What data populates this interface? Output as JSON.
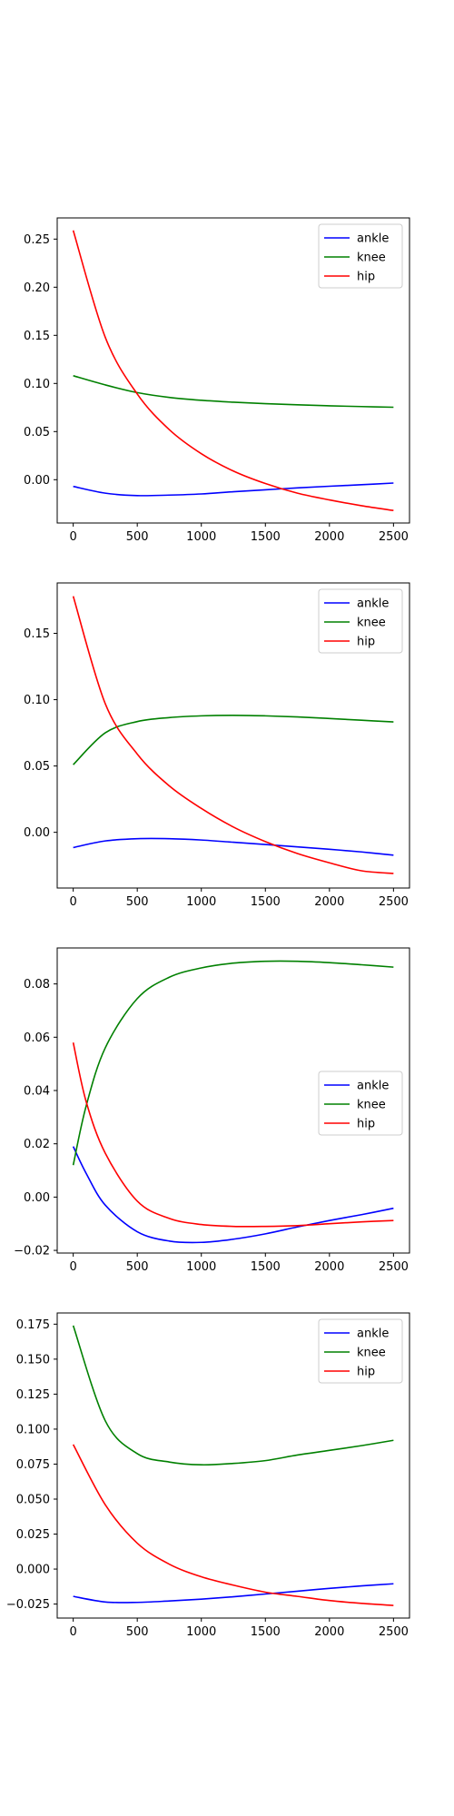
{
  "chart_data": [
    {
      "type": "line",
      "title": "",
      "xlabel": "",
      "ylabel": "",
      "xlim": [
        -125,
        2625
      ],
      "ylim": [
        -0.045,
        0.272
      ],
      "xticks": [
        0,
        500,
        1000,
        1500,
        2000,
        2500
      ],
      "yticks": [
        0.0,
        0.05,
        0.1,
        0.15,
        0.2,
        0.25
      ],
      "ytick_labels": [
        "0.00",
        "0.05",
        "0.10",
        "0.15",
        "0.20",
        "0.25"
      ],
      "legend": "top-right",
      "grid": false,
      "x": [
        0,
        250,
        500,
        750,
        1000,
        1250,
        1500,
        1750,
        2000,
        2250,
        2500
      ],
      "series": [
        {
          "name": "ankle",
          "color": "#0000ff",
          "values": [
            -0.007,
            -0.014,
            -0.0165,
            -0.016,
            -0.0148,
            -0.0125,
            -0.0105,
            -0.0085,
            -0.0068,
            -0.0052,
            -0.0035
          ]
        },
        {
          "name": "knee",
          "color": "#008000",
          "values": [
            0.108,
            0.0985,
            0.0905,
            0.0855,
            0.0825,
            0.0805,
            0.079,
            0.0778,
            0.0768,
            0.076,
            0.0753
          ]
        },
        {
          "name": "hip",
          "color": "#ff0000",
          "values": [
            0.259,
            0.148,
            0.089,
            0.052,
            0.027,
            0.009,
            -0.004,
            -0.014,
            -0.021,
            -0.027,
            -0.032
          ]
        }
      ]
    },
    {
      "type": "line",
      "title": "",
      "xlabel": "",
      "ylabel": "",
      "xlim": [
        -125,
        2625
      ],
      "ylim": [
        -0.042,
        0.188
      ],
      "xticks": [
        0,
        500,
        1000,
        1500,
        2000,
        2500
      ],
      "yticks": [
        0.0,
        0.05,
        0.1,
        0.15
      ],
      "ytick_labels": [
        "0.00",
        "0.05",
        "0.10",
        "0.15"
      ],
      "legend": "top-right",
      "grid": false,
      "x": [
        0,
        250,
        500,
        750,
        1000,
        1250,
        1500,
        1750,
        2000,
        2250,
        2500
      ],
      "series": [
        {
          "name": "ankle",
          "color": "#0000ff",
          "values": [
            -0.0115,
            -0.0065,
            -0.0048,
            -0.0048,
            -0.0058,
            -0.0075,
            -0.0092,
            -0.011,
            -0.0128,
            -0.0148,
            -0.0172
          ]
        },
        {
          "name": "knee",
          "color": "#008000",
          "values": [
            0.051,
            0.075,
            0.0835,
            0.0865,
            0.0878,
            0.0882,
            0.0878,
            0.087,
            0.0858,
            0.0845,
            0.0832
          ]
        },
        {
          "name": "hip",
          "color": "#ff0000",
          "values": [
            0.178,
            0.097,
            0.059,
            0.035,
            0.018,
            0.004,
            -0.007,
            -0.016,
            -0.023,
            -0.029,
            -0.031
          ]
        }
      ]
    },
    {
      "type": "line",
      "title": "",
      "xlabel": "",
      "ylabel": "",
      "xlim": [
        -125,
        2625
      ],
      "ylim": [
        -0.021,
        0.0935
      ],
      "xticks": [
        0,
        500,
        1000,
        1500,
        2000,
        2500
      ],
      "yticks": [
        -0.02,
        0.0,
        0.02,
        0.04,
        0.06,
        0.08
      ],
      "ytick_labels": [
        "−0.02",
        "0.00",
        "0.02",
        "0.04",
        "0.06",
        "0.08"
      ],
      "legend": "center-right",
      "grid": false,
      "x": [
        0,
        100,
        250,
        500,
        750,
        1000,
        1250,
        1500,
        1750,
        2000,
        2250,
        2500
      ],
      "series": [
        {
          "name": "ankle",
          "color": "#0000ff",
          "values": [
            0.019,
            0.009,
            -0.003,
            -0.013,
            -0.0165,
            -0.017,
            -0.0158,
            -0.0138,
            -0.0112,
            -0.0088,
            -0.0066,
            -0.0042
          ]
        },
        {
          "name": "knee",
          "color": "#008000",
          "values": [
            0.012,
            0.034,
            0.056,
            0.0745,
            0.0825,
            0.086,
            0.0878,
            0.0885,
            0.0885,
            0.088,
            0.0872,
            0.0863
          ]
        },
        {
          "name": "hip",
          "color": "#ff0000",
          "values": [
            0.058,
            0.036,
            0.0165,
            -0.0015,
            -0.008,
            -0.0103,
            -0.011,
            -0.011,
            -0.0107,
            -0.01,
            -0.0093,
            -0.0088
          ]
        }
      ]
    },
    {
      "type": "line",
      "title": "",
      "xlabel": "",
      "ylabel": "",
      "xlim": [
        -125,
        2625
      ],
      "ylim": [
        -0.035,
        0.183
      ],
      "xticks": [
        0,
        500,
        1000,
        1500,
        2000,
        2500
      ],
      "yticks": [
        -0.025,
        0.0,
        0.025,
        0.05,
        0.075,
        0.1,
        0.125,
        0.15,
        0.175
      ],
      "ytick_labels": [
        "−0.025",
        "0.000",
        "0.025",
        "0.050",
        "0.075",
        "0.100",
        "0.125",
        "0.150",
        "0.175"
      ],
      "legend": "top-right",
      "grid": false,
      "x": [
        0,
        250,
        500,
        750,
        1000,
        1250,
        1500,
        1750,
        2000,
        2250,
        2500
      ],
      "series": [
        {
          "name": "ankle",
          "color": "#0000ff",
          "values": [
            -0.0195,
            -0.0235,
            -0.0238,
            -0.0228,
            -0.0215,
            -0.0198,
            -0.0178,
            -0.0158,
            -0.0138,
            -0.012,
            -0.0105
          ]
        },
        {
          "name": "knee",
          "color": "#008000",
          "values": [
            0.174,
            0.106,
            0.0825,
            0.0765,
            0.0745,
            0.0755,
            0.0775,
            0.0815,
            0.0848,
            0.0882,
            0.092
          ]
        },
        {
          "name": "hip",
          "color": "#ff0000",
          "values": [
            0.089,
            0.046,
            0.0185,
            0.0035,
            -0.0055,
            -0.0115,
            -0.0165,
            -0.0195,
            -0.0225,
            -0.0245,
            -0.026
          ]
        }
      ]
    }
  ]
}
